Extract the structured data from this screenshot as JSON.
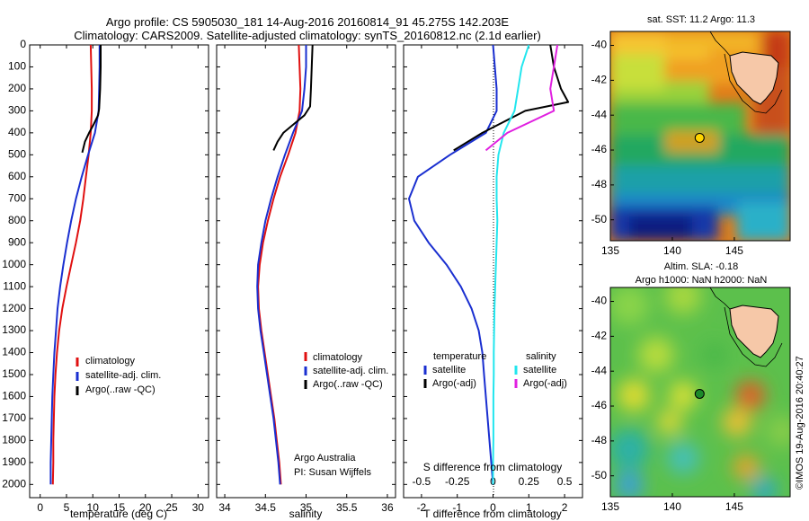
{
  "title_line1": "Argo profile: CS 5905030_181 14-Aug-2016 20160814_91 45.275S 142.203E",
  "title_line2": "Climatology: CARS2009. Satellite-adjusted climatology: synTS_20160812.nc (2.1d earlier)",
  "side_label": "©IMOS 19-Aug-2016 20:40:27",
  "colors": {
    "climatology": "#e01010",
    "satellite": "#1a2fd0",
    "argo": "#000000",
    "cyan": "#22e6ee",
    "magenta": "#e020e0"
  },
  "chart_data": [
    {
      "type": "line",
      "xlabel": "temperature (deg C)",
      "xticks": [
        "0",
        "5",
        "10",
        "15",
        "20",
        "25",
        "30"
      ],
      "yticks": [
        "0",
        "100",
        "200",
        "300",
        "400",
        "500",
        "600",
        "700",
        "800",
        "900",
        "1000",
        "1100",
        "1200",
        "1300",
        "1400",
        "1500",
        "1600",
        "1700",
        "1800",
        "1900",
        "2000"
      ],
      "xlim": [
        -2,
        32
      ],
      "ylim": [
        0,
        2060
      ],
      "legend": [
        "climatology",
        "satellite-adj. clim.",
        "Argo(..raw -QC)"
      ],
      "series": [
        {
          "name": "climatology",
          "color": "#e01010",
          "x": [
            9.6,
            9.7,
            9.8,
            9.8,
            9.6,
            9.2,
            8.7,
            8.2,
            7.6,
            6.8,
            5.9,
            5.0,
            4.2,
            3.6,
            3.2,
            2.9,
            2.7,
            2.6,
            2.5,
            2.5,
            2.4
          ],
          "y": [
            0,
            100,
            200,
            300,
            400,
            500,
            600,
            700,
            800,
            900,
            1000,
            1100,
            1200,
            1300,
            1400,
            1500,
            1600,
            1700,
            1800,
            1900,
            2000
          ]
        },
        {
          "name": "satellite-adj. clim.",
          "color": "#1a2fd0",
          "x": [
            11.3,
            11.3,
            11.2,
            11.1,
            10.4,
            9.1,
            7.9,
            6.8,
            5.9,
            5.1,
            4.4,
            3.8,
            3.3,
            3.0,
            2.7,
            2.5,
            2.3,
            2.2,
            2.1,
            2.0,
            2.0
          ],
          "y": [
            0,
            100,
            200,
            300,
            400,
            500,
            600,
            700,
            800,
            900,
            1000,
            1100,
            1200,
            1300,
            1400,
            1500,
            1600,
            1700,
            1800,
            1900,
            2000
          ]
        },
        {
          "name": "Argo(..raw -QC)",
          "color": "#000000",
          "x": [
            11.5,
            11.5,
            11.4,
            11.2,
            11.0,
            10.2,
            9.3,
            8.5,
            8.0
          ],
          "y": [
            0,
            100,
            200,
            290,
            320,
            360,
            400,
            440,
            490
          ]
        }
      ]
    },
    {
      "type": "line",
      "xlabel": "salinity",
      "xticks": [
        "34",
        "34.5",
        "35",
        "35.5",
        "36"
      ],
      "yticks": [],
      "xlim": [
        33.9,
        36.1
      ],
      "ylim": [
        0,
        2060
      ],
      "legend": [
        "climatology",
        "satellite-adj. clim.",
        "Argo(..raw -QC)"
      ],
      "annotation": [
        "Argo Australia",
        "PI: Susan Wijffels"
      ],
      "series": [
        {
          "name": "climatology",
          "color": "#e01010",
          "x": [
            34.91,
            34.92,
            34.93,
            34.92,
            34.87,
            34.78,
            34.68,
            34.6,
            34.53,
            34.47,
            34.43,
            34.41,
            34.42,
            34.45,
            34.49,
            34.53,
            34.57,
            34.61,
            34.64,
            34.67,
            34.69
          ],
          "y": [
            0,
            100,
            200,
            300,
            400,
            500,
            600,
            700,
            800,
            900,
            1000,
            1100,
            1200,
            1300,
            1400,
            1500,
            1600,
            1700,
            1800,
            1900,
            2000
          ]
        },
        {
          "name": "satellite-adj. clim.",
          "color": "#1a2fd0",
          "x": [
            35.0,
            35.0,
            34.98,
            34.95,
            34.84,
            34.74,
            34.65,
            34.57,
            34.5,
            34.45,
            34.41,
            34.4,
            34.41,
            34.44,
            34.48,
            34.52,
            34.56,
            34.6,
            34.63,
            34.66,
            34.68
          ],
          "y": [
            0,
            100,
            200,
            300,
            400,
            500,
            600,
            700,
            800,
            900,
            1000,
            1100,
            1200,
            1300,
            1400,
            1500,
            1600,
            1700,
            1800,
            1900,
            2000
          ]
        },
        {
          "name": "Argo(..raw -QC)",
          "color": "#000000",
          "x": [
            35.08,
            35.07,
            35.06,
            35.05,
            34.98,
            34.85,
            34.72,
            34.65,
            34.6
          ],
          "y": [
            0,
            100,
            200,
            280,
            320,
            360,
            400,
            440,
            480
          ]
        }
      ]
    },
    {
      "type": "line",
      "xlabel": "T difference from climatology",
      "xlabel2": "S difference from climatology",
      "xticks": [
        "-2",
        "-1",
        "0",
        "1",
        "2"
      ],
      "xticks2": [
        "-0.5",
        "-0.25",
        "0",
        "0.25",
        "0.5"
      ],
      "yticks": [],
      "xlim": [
        -2.5,
        2.5
      ],
      "ylim": [
        0,
        2060
      ],
      "legend_titles": [
        "temperature",
        "salinity"
      ],
      "legend": [
        "satellite",
        "Argo(-adj)",
        "satellite",
        "Argo(-adj)"
      ],
      "series": [
        {
          "name": "satellite",
          "color": "#1a2fd0",
          "x": [
            0,
            0.05,
            0.1,
            0.1,
            -0.2,
            -1.2,
            -2.1,
            -2.35,
            -2.2,
            -1.8,
            -1.3,
            -0.9,
            -0.6,
            -0.4,
            -0.3,
            -0.25,
            -0.2,
            -0.15,
            -0.1,
            -0.05,
            0
          ],
          "y": [
            0,
            100,
            200,
            300,
            400,
            500,
            600,
            700,
            800,
            900,
            1000,
            1100,
            1200,
            1300,
            1400,
            1500,
            1600,
            1700,
            1800,
            1900,
            2000
          ]
        },
        {
          "name": "Argo(-adj)",
          "color": "#000000",
          "x": [
            1.6,
            1.7,
            1.9,
            2.1,
            0.9,
            -0.3,
            -1.1
          ],
          "y": [
            0,
            100,
            200,
            260,
            300,
            400,
            480
          ]
        },
        {
          "name": "salinity satellite",
          "color": "#22e6ee",
          "x": [
            1.0,
            0.8,
            0.7,
            0.6,
            0.3,
            0.15,
            0.1,
            0.1,
            0.12,
            0.1,
            0.08,
            0.06,
            0.04,
            0.03,
            0.02,
            0.02,
            0.01,
            0.01,
            0.01,
            0,
            0
          ],
          "y": [
            0,
            100,
            200,
            300,
            400,
            500,
            600,
            700,
            800,
            900,
            1000,
            1100,
            1200,
            1300,
            1400,
            1500,
            1600,
            1700,
            1800,
            1900,
            2000
          ]
        },
        {
          "name": "salinity Argo(-adj)",
          "color": "#e020e0",
          "x": [
            1.8,
            1.7,
            1.6,
            1.7,
            0.4,
            -0.2
          ],
          "y": [
            0,
            100,
            200,
            300,
            400,
            480
          ]
        }
      ]
    },
    {
      "type": "heatmap",
      "title": "sat. SST: 11.2 Argo: 11.3",
      "xticks": [
        "135",
        "140",
        "145"
      ],
      "yticks": [
        "-40",
        "-42",
        "-44",
        "-46",
        "-48",
        "-50"
      ],
      "xlim": [
        135,
        149.5
      ],
      "ylim": [
        -51.2,
        -39.2
      ],
      "marker": {
        "lon": 142.2,
        "lat": -45.3,
        "color": "#ffd400"
      }
    },
    {
      "type": "heatmap",
      "title": "Altim. SLA: -0.18",
      "subtitle": "Argo h1000: NaN h2000: NaN",
      "xticks": [
        "135",
        "140",
        "145"
      ],
      "yticks": [
        "-40",
        "-42",
        "-44",
        "-46",
        "-48",
        "-50"
      ],
      "xlim": [
        135,
        149.5
      ],
      "ylim": [
        -51.2,
        -39.2
      ],
      "marker": {
        "lon": 142.2,
        "lat": -45.3,
        "color": "#1c8a2a"
      }
    }
  ]
}
